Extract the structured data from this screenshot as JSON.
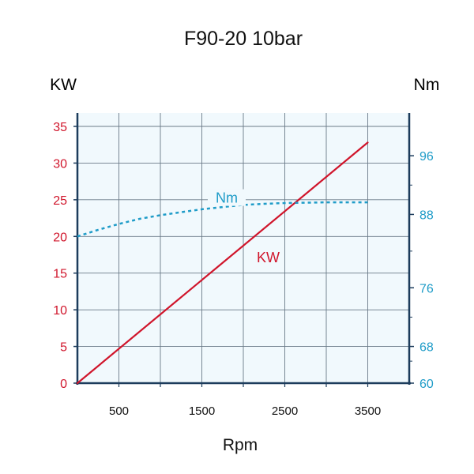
{
  "chart_data": {
    "type": "line",
    "title": "F90-20 10bar",
    "xlabel": "Rpm",
    "x_ticks": [
      "500",
      "1500",
      "2500",
      "3500"
    ],
    "xlim": [
      0,
      4000
    ],
    "y_left": {
      "label": "KW",
      "color": "#d0152b",
      "ticks": [
        "0",
        "5",
        "10",
        "15",
        "20",
        "25",
        "30",
        "35"
      ],
      "ylim": [
        0,
        35
      ]
    },
    "y_right": {
      "label": "Nm",
      "color": "#1f9cc8",
      "ticks": [
        "60",
        "68",
        "76",
        "88",
        "96"
      ],
      "tick_left_values": [
        0,
        5,
        13,
        23,
        31
      ]
    },
    "grid": true,
    "plot_background": "#f1f9fd",
    "grid_color": "#6a7a88",
    "frame_color": "#1c3c5c",
    "series": [
      {
        "name": "KW",
        "axis": "left",
        "style": "solid",
        "color": "#d0152b",
        "label_at": [
          2300,
          16.5
        ],
        "x": [
          0,
          3500
        ],
        "y": [
          0,
          32.8
        ]
      },
      {
        "name": "Nm",
        "axis": "right",
        "style": "dashed",
        "color": "#1f9cc8",
        "label_at": [
          1800,
          24.6
        ],
        "x": [
          0,
          250,
          500,
          750,
          1000,
          1250,
          1500,
          1750,
          2000,
          2250,
          2500,
          2750,
          3000,
          3250,
          3500
        ],
        "y_on_left_scale": [
          20.0,
          20.9,
          21.7,
          22.4,
          22.9,
          23.3,
          23.7,
          24.0,
          24.3,
          24.45,
          24.55,
          24.6,
          24.65,
          24.65,
          24.65
        ]
      }
    ]
  }
}
